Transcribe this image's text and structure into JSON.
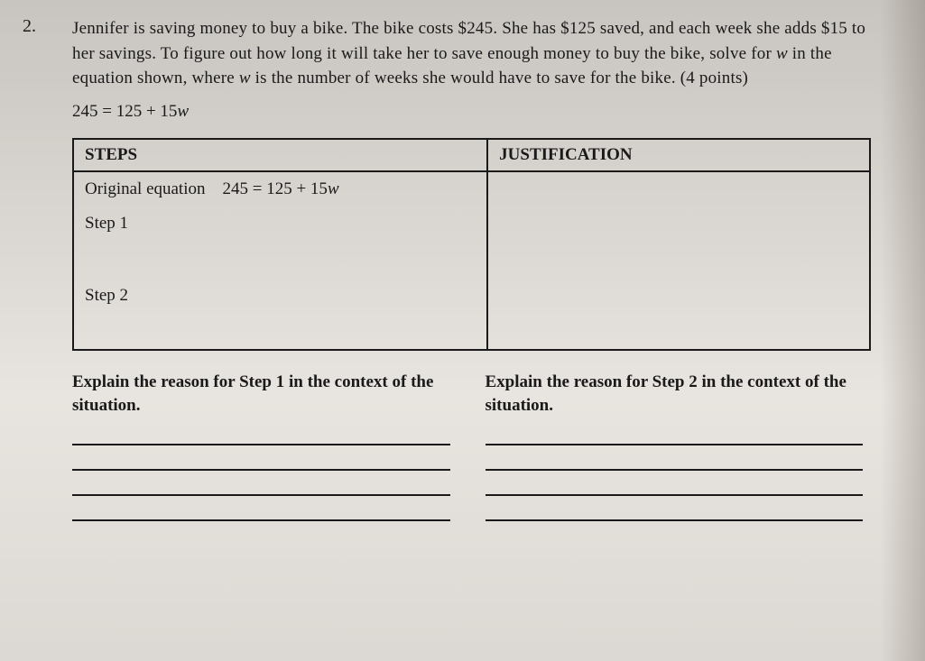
{
  "question_number": "2.",
  "problem_text_1": "Jennifer is saving money to buy a bike. The bike costs $245. She has $125 saved, and each week she adds $15 to her savings. To figure out how long it will take her to save enough money to buy the bike, solve for ",
  "problem_var": "w",
  "problem_text_2": " in the equation shown, where ",
  "problem_var2": "w",
  "problem_text_3": " is the number of weeks she would have to save for the bike. (4 points)",
  "equation": "245 = 125 + 15w",
  "table": {
    "header_steps": "STEPS",
    "header_just": "JUSTIFICATION",
    "orig_label": "Original equation",
    "orig_eq": "245 = 125 + 15w",
    "step1": "Step 1",
    "step2": "Step 2"
  },
  "prompt1": "Explain the reason for Step 1 in the context of the situation.",
  "prompt2": "Explain the reason for Step 2 in the context of the situation."
}
